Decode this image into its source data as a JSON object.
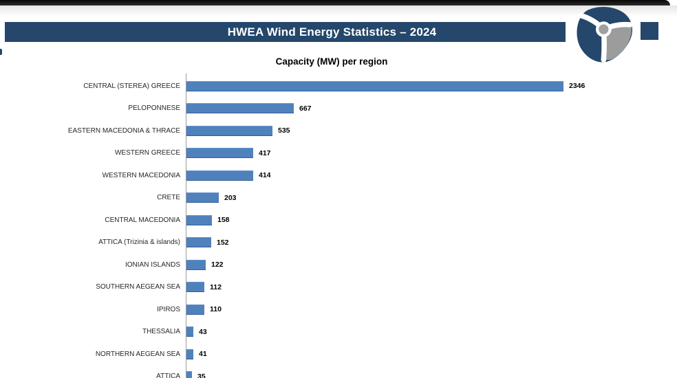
{
  "window": {
    "top_bar_color": "#111111"
  },
  "header": {
    "title": "HWEA Wind Energy Statistics – 2024",
    "banner_color": "#24476b",
    "accent_square_color": "#24476b",
    "logo": {
      "icon": "wind-turbine-rotor",
      "primary_color": "#24476b",
      "blade_gray": "#9c9c9c",
      "hub_gray": "#a0a0a0"
    }
  },
  "chart_data": {
    "type": "bar",
    "orientation": "horizontal",
    "title": "Capacity (MW) per region",
    "categories": [
      "CENTRAL (STEREA) GREECE",
      "PELOPONNESE",
      "EASTERN MACEDONIA & THRACE",
      "WESTERN GREECE",
      "WESTERN MACEDONIA",
      "CRETE",
      "CENTRAL MACEDONIA",
      "ATTICA (Trizinia & islands)",
      "IONIAN ISLANDS",
      "SOUTHERN AEGEAN SEA",
      "IPIROS",
      "THESSALIA",
      "NORTHERN AEGEAN SEA",
      "ATTICA"
    ],
    "values": [
      2346,
      667,
      535,
      417,
      414,
      203,
      158,
      152,
      122,
      112,
      110,
      43,
      41,
      35
    ],
    "value_labels_shown": true,
    "value_axis_labels": "hidden",
    "grid": false,
    "legend": "none",
    "bar_color": "#4f81bd",
    "bar_edge_color": "#3a66a0",
    "axis_color": "#9b9b9b",
    "label_color": "#262626"
  }
}
